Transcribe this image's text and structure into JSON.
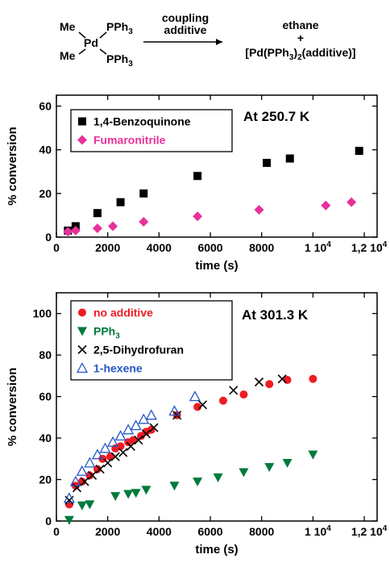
{
  "scheme": {
    "me_top": "Me",
    "me_bottom": "Me",
    "pd": "Pd",
    "pph3_top": "PPh",
    "pph3_bottom": "PPh",
    "arrow_top": "coupling",
    "arrow_bottom": "additive",
    "product_top": "ethane",
    "product_plus": "+",
    "product_bottom_a": "[Pd(PPh",
    "product_bottom_b": ")",
    "product_bottom_c": "(additive)]",
    "sub3": "3",
    "sub2": "2"
  },
  "chart_data": [
    {
      "type": "scatter",
      "annotation": "At 250.7 K",
      "xlabel": "time (s)",
      "ylabel": "% conversion",
      "xlim": [
        0,
        12500
      ],
      "ylim": [
        0,
        65
      ],
      "xticks": [
        0,
        2000,
        4000,
        6000,
        8000,
        10000,
        12000
      ],
      "xtick_labels": [
        "0",
        "2000",
        "4000",
        "6000",
        "8000",
        "1 10",
        "1,2 10"
      ],
      "xtick_exp": "4",
      "yticks": [
        0,
        20,
        40,
        60
      ],
      "legend_position": "top-left",
      "series": [
        {
          "name": "1,4-Benzoquinone",
          "marker": "square",
          "color": "#000000",
          "x": [
            450,
            750,
            1600,
            2500,
            3400,
            5500,
            8200,
            9100,
            11800
          ],
          "y": [
            3,
            5,
            11,
            16,
            20,
            28,
            34,
            36,
            39.5
          ]
        },
        {
          "name": "Fumaronitrile",
          "marker": "diamond",
          "color": "#e8309a",
          "x": [
            450,
            750,
            1600,
            2200,
            3400,
            5500,
            7900,
            10500,
            11500
          ],
          "y": [
            2.5,
            3,
            4,
            5,
            7,
            9.5,
            12.5,
            14.5,
            16
          ]
        }
      ]
    },
    {
      "type": "scatter",
      "annotation": "At 301.3 K",
      "xlabel": "time (s)",
      "ylabel": "% conversion",
      "xlim": [
        0,
        12500
      ],
      "ylim": [
        0,
        110
      ],
      "xticks": [
        0,
        2000,
        4000,
        6000,
        8000,
        10000,
        12000
      ],
      "xtick_labels": [
        "0",
        "2000",
        "4000",
        "6000",
        "8000",
        "1 10",
        "1,2 10"
      ],
      "xtick_exp": "4",
      "yticks": [
        0,
        20,
        40,
        60,
        80,
        100
      ],
      "legend_position": "top-left",
      "series": [
        {
          "name": "no additive",
          "marker": "circle",
          "color": "#ee1c24",
          "x": [
            500,
            750,
            1000,
            1300,
            1600,
            1800,
            2100,
            2300,
            2500,
            2800,
            3000,
            3300,
            3500,
            3700,
            4700,
            5500,
            6500,
            7300,
            8300,
            9000,
            10000
          ],
          "y": [
            8,
            17,
            19,
            22,
            25,
            30,
            31,
            35,
            36,
            38,
            39,
            41,
            43,
            44,
            51,
            55,
            58,
            61,
            66,
            68,
            68.5
          ]
        },
        {
          "name": "PPh3",
          "marker": "triangle-down",
          "color": "#007a3d",
          "x": [
            500,
            1000,
            1300,
            2300,
            2800,
            3100,
            3500,
            4600,
            5500,
            6300,
            7300,
            8300,
            9000,
            10000
          ],
          "y": [
            0.5,
            7.5,
            8,
            12,
            13,
            13.5,
            15,
            17,
            19,
            21,
            23.5,
            26,
            28,
            32
          ]
        },
        {
          "name": "2,5-Dihydrofuran",
          "marker": "x",
          "color": "#000000",
          "x": [
            500,
            800,
            1100,
            1400,
            1700,
            2000,
            2300,
            2600,
            2900,
            3200,
            3500,
            3800,
            4700,
            5700,
            6900,
            7900,
            8800
          ],
          "y": [
            10,
            16,
            19,
            22,
            25,
            28,
            31,
            33,
            36,
            39,
            42,
            45,
            51,
            56,
            63,
            67,
            68.5
          ]
        },
        {
          "name": "1-hexene",
          "marker": "triangle-up",
          "color": "#2457c5",
          "x": [
            500,
            750,
            1000,
            1300,
            1600,
            1900,
            2200,
            2500,
            2800,
            3100,
            3400,
            3700,
            4600,
            5400
          ],
          "y": [
            11,
            19,
            24,
            28,
            32,
            35,
            38,
            41,
            44,
            46,
            49,
            51,
            53,
            60
          ]
        }
      ]
    }
  ]
}
